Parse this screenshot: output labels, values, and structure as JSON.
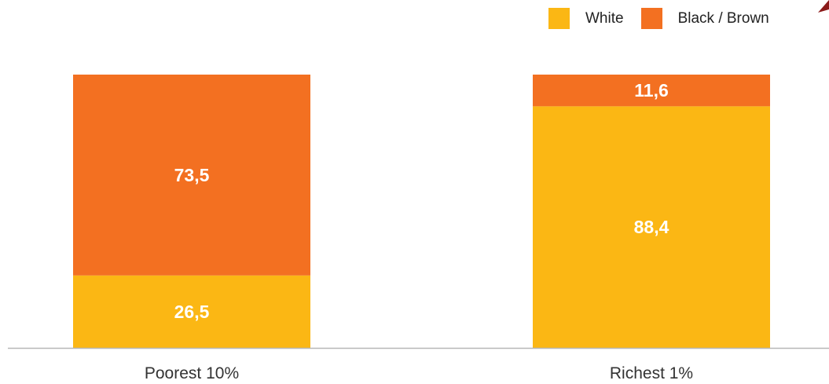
{
  "chart_data": {
    "type": "bar",
    "stacked": true,
    "categories": [
      "Poorest 10%",
      "Richest 1%"
    ],
    "series": [
      {
        "name": "White",
        "values": [
          26.5,
          88.4
        ],
        "labels": [
          "26,5",
          "88,4"
        ],
        "color": "#FBB714"
      },
      {
        "name": "Black / Brown",
        "values": [
          73.5,
          11.6
        ],
        "labels": [
          "73,5",
          "11,6"
        ],
        "color": "#F37021"
      }
    ],
    "ylim": [
      0,
      100
    ],
    "grid": false,
    "legend": "top-right",
    "title": "",
    "xlabel": "",
    "ylabel": ""
  },
  "colors": {
    "baseline": "#B7B7B7",
    "corner_mark": "#8B1A1A"
  }
}
